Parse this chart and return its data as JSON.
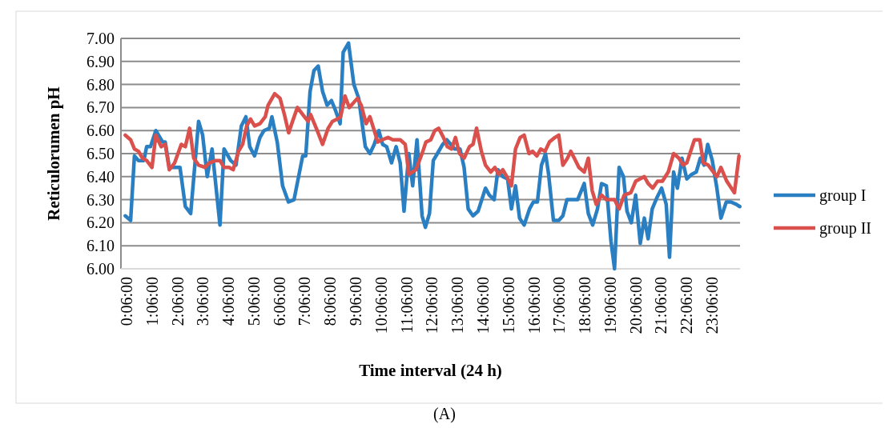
{
  "chart_data": {
    "type": "line",
    "xlabel": "Time interval (24 h)",
    "ylabel": "Reticulorumen pH",
    "annotations": [
      "(A)"
    ],
    "xlim": [
      -0.12,
      24.2
    ],
    "xticks": [
      {
        "value": 0.1,
        "label": "0:06:00"
      },
      {
        "value": 1.1,
        "label": "1:06:00"
      },
      {
        "value": 2.1,
        "label": "2:06:00"
      },
      {
        "value": 3.1,
        "label": "3:06:00"
      },
      {
        "value": 4.1,
        "label": "4:06:00"
      },
      {
        "value": 5.1,
        "label": "5:06:00"
      },
      {
        "value": 6.1,
        "label": "6:06:00"
      },
      {
        "value": 7.1,
        "label": "7:06:00"
      },
      {
        "value": 8.1,
        "label": "8:06:00"
      },
      {
        "value": 9.1,
        "label": "9:06:00"
      },
      {
        "value": 10.1,
        "label": "10:06:00"
      },
      {
        "value": 11.1,
        "label": "11:06:00"
      },
      {
        "value": 12.1,
        "label": "12:06:00"
      },
      {
        "value": 13.1,
        "label": "13:06:00"
      },
      {
        "value": 14.1,
        "label": "14:06:00"
      },
      {
        "value": 15.1,
        "label": "15:06:00"
      },
      {
        "value": 16.1,
        "label": "16:06:00"
      },
      {
        "value": 17.1,
        "label": "17:06:00"
      },
      {
        "value": 18.1,
        "label": "18:06:00"
      },
      {
        "value": 19.1,
        "label": "19:06:00"
      },
      {
        "value": 20.1,
        "label": "20:06:00"
      },
      {
        "value": 21.1,
        "label": "21:06:00"
      },
      {
        "value": 22.1,
        "label": "22:06:00"
      },
      {
        "value": 23.1,
        "label": "23:06:00"
      }
    ],
    "ylim": [
      6,
      7
    ],
    "yticks": [
      {
        "value": 6,
        "label": "6.00"
      },
      {
        "value": 6.1,
        "label": "6.10"
      },
      {
        "value": 6.2,
        "label": "6.20"
      },
      {
        "value": 6.3,
        "label": "6.30"
      },
      {
        "value": 6.4,
        "label": "6.40"
      },
      {
        "value": 6.5,
        "label": "6.50"
      },
      {
        "value": 6.6,
        "label": "6.60"
      },
      {
        "value": 6.7,
        "label": "6.70"
      },
      {
        "value": 6.8,
        "label": "6.80"
      },
      {
        "value": 6.9,
        "label": "6.90"
      },
      {
        "value": 7,
        "label": "7.00"
      }
    ],
    "grid": "y",
    "legend": "right",
    "marker": "none",
    "line_style": "solid",
    "series": [
      {
        "name": "group I",
        "color": "#2a7fc2",
        "x": [
          0.05,
          0.26,
          0.41,
          0.57,
          0.78,
          0.89,
          1.04,
          1.25,
          1.52,
          1.62,
          1.78,
          2.2,
          2.41,
          2.62,
          2.93,
          3.09,
          3.27,
          3.46,
          3.77,
          3.93,
          4.19,
          4.4,
          4.61,
          4.79,
          4.94,
          5.13,
          5.34,
          5.5,
          5.71,
          5.81,
          6.02,
          6.23,
          6.46,
          6.68,
          7.02,
          7.14,
          7.31,
          7.46,
          7.63,
          7.8,
          7.98,
          8.15,
          8.3,
          8.49,
          8.61,
          8.82,
          9.03,
          9.22,
          9.48,
          9.66,
          9.83,
          10.01,
          10.16,
          10.32,
          10.51,
          10.69,
          10.85,
          11.0,
          11.19,
          11.34,
          11.51,
          11.71,
          11.84,
          12.0,
          12.15,
          12.31,
          12.52,
          12.68,
          12.84,
          12.99,
          13.2,
          13.36,
          13.52,
          13.71,
          13.91,
          14.2,
          14.35,
          14.54,
          14.69,
          14.88,
          15.07,
          15.22,
          15.38,
          15.54,
          15.72,
          15.93,
          16.08,
          16.24,
          16.4,
          16.56,
          16.68,
          16.87,
          17.08,
          17.24,
          17.4,
          17.61,
          17.82,
          18.08,
          18.24,
          18.41,
          18.6,
          18.76,
          18.95,
          19.13,
          19.27,
          19.45,
          19.62,
          19.76,
          19.93,
          20.1,
          20.28,
          20.44,
          20.59,
          20.75,
          20.94,
          21.12,
          21.3,
          21.43,
          21.59,
          21.74,
          21.92,
          22.11,
          22.3,
          22.48,
          22.64,
          22.79,
          22.93,
          23.11,
          23.29,
          23.45,
          23.66,
          23.84,
          24.05,
          24.19
        ],
        "values": [
          6.23,
          6.21,
          6.49,
          6.47,
          6.47,
          6.53,
          6.53,
          6.6,
          6.55,
          6.55,
          6.44,
          6.44,
          6.27,
          6.24,
          6.64,
          6.58,
          6.4,
          6.52,
          6.19,
          6.52,
          6.47,
          6.45,
          6.62,
          6.66,
          6.53,
          6.49,
          6.57,
          6.6,
          6.61,
          6.66,
          6.55,
          6.36,
          6.29,
          6.3,
          6.49,
          6.49,
          6.77,
          6.86,
          6.88,
          6.77,
          6.71,
          6.73,
          6.69,
          6.63,
          6.94,
          6.98,
          6.8,
          6.74,
          6.53,
          6.5,
          6.54,
          6.6,
          6.54,
          6.53,
          6.46,
          6.53,
          6.46,
          6.25,
          6.5,
          6.36,
          6.56,
          6.23,
          6.18,
          6.24,
          6.47,
          6.5,
          6.54,
          6.56,
          6.54,
          6.52,
          6.52,
          6.44,
          6.26,
          6.23,
          6.25,
          6.35,
          6.32,
          6.3,
          6.43,
          6.4,
          6.39,
          6.26,
          6.36,
          6.22,
          6.19,
          6.26,
          6.29,
          6.29,
          6.45,
          6.5,
          6.41,
          6.21,
          6.21,
          6.23,
          6.3,
          6.3,
          6.3,
          6.37,
          6.24,
          6.19,
          6.26,
          6.37,
          6.36,
          6.12,
          6.0,
          6.44,
          6.4,
          6.25,
          6.2,
          6.32,
          6.11,
          6.22,
          6.13,
          6.26,
          6.31,
          6.35,
          6.28,
          6.05,
          6.42,
          6.35,
          6.48,
          6.39,
          6.41,
          6.42,
          6.48,
          6.45,
          6.54,
          6.47,
          6.35,
          6.22,
          6.29,
          6.29,
          6.28,
          6.27
        ]
      },
      {
        "name": "group II",
        "color": "#d9504c",
        "x": [
          0.05,
          0.26,
          0.41,
          0.57,
          0.73,
          0.89,
          1.1,
          1.25,
          1.46,
          1.62,
          1.78,
          1.99,
          2.25,
          2.41,
          2.58,
          2.74,
          2.93,
          3.19,
          3.35,
          3.61,
          3.77,
          3.93,
          4.13,
          4.29,
          4.5,
          4.66,
          4.82,
          4.97,
          5.13,
          5.34,
          5.55,
          5.66,
          5.92,
          6.13,
          6.3,
          6.47,
          6.62,
          6.81,
          7.02,
          7.23,
          7.33,
          7.59,
          7.8,
          8.02,
          8.19,
          8.38,
          8.51,
          8.68,
          8.85,
          9.17,
          9.32,
          9.51,
          9.66,
          9.83,
          9.97,
          10.14,
          10.37,
          10.56,
          10.85,
          11.05,
          11.19,
          11.47,
          11.74,
          11.86,
          12.05,
          12.21,
          12.36,
          12.55,
          12.7,
          12.87,
          13.02,
          13.18,
          13.36,
          13.57,
          13.71,
          13.85,
          14.04,
          14.2,
          14.41,
          14.57,
          14.72,
          14.88,
          15.04,
          15.22,
          15.38,
          15.56,
          15.72,
          15.91,
          16.05,
          16.22,
          16.37,
          16.54,
          16.71,
          16.93,
          17.08,
          17.24,
          17.42,
          17.55,
          17.69,
          17.87,
          18.08,
          18.24,
          18.39,
          18.55,
          18.76,
          18.95,
          19.27,
          19.45,
          19.65,
          19.91,
          20.1,
          20.44,
          20.59,
          20.77,
          20.96,
          21.15,
          21.38,
          21.59,
          21.8,
          21.96,
          22.11,
          22.41,
          22.62,
          22.76,
          22.95,
          23.29,
          23.45,
          23.68,
          23.98,
          24.16
        ],
        "values": [
          6.58,
          6.56,
          6.52,
          6.51,
          6.48,
          6.47,
          6.44,
          6.58,
          6.53,
          6.54,
          6.43,
          6.46,
          6.54,
          6.53,
          6.61,
          6.48,
          6.45,
          6.44,
          6.46,
          6.47,
          6.47,
          6.44,
          6.44,
          6.43,
          6.51,
          6.54,
          6.62,
          6.65,
          6.62,
          6.63,
          6.66,
          6.71,
          6.76,
          6.74,
          6.67,
          6.59,
          6.64,
          6.7,
          6.67,
          6.64,
          6.67,
          6.6,
          6.54,
          6.61,
          6.64,
          6.65,
          6.66,
          6.75,
          6.7,
          6.74,
          6.71,
          6.63,
          6.66,
          6.6,
          6.55,
          6.56,
          6.57,
          6.56,
          6.56,
          6.54,
          6.41,
          6.43,
          6.51,
          6.55,
          6.56,
          6.6,
          6.61,
          6.57,
          6.53,
          6.52,
          6.57,
          6.5,
          6.48,
          6.53,
          6.54,
          6.61,
          6.51,
          6.45,
          6.42,
          6.44,
          6.41,
          6.43,
          6.4,
          6.36,
          6.52,
          6.57,
          6.58,
          6.5,
          6.51,
          6.49,
          6.52,
          6.51,
          6.55,
          6.57,
          6.58,
          6.45,
          6.48,
          6.51,
          6.48,
          6.44,
          6.42,
          6.48,
          6.34,
          6.28,
          6.32,
          6.3,
          6.3,
          6.26,
          6.32,
          6.33,
          6.38,
          6.4,
          6.37,
          6.35,
          6.38,
          6.38,
          6.42,
          6.5,
          6.48,
          6.45,
          6.46,
          6.56,
          6.56,
          6.46,
          6.45,
          6.4,
          6.44,
          6.38,
          6.33,
          6.49
        ]
      }
    ]
  }
}
